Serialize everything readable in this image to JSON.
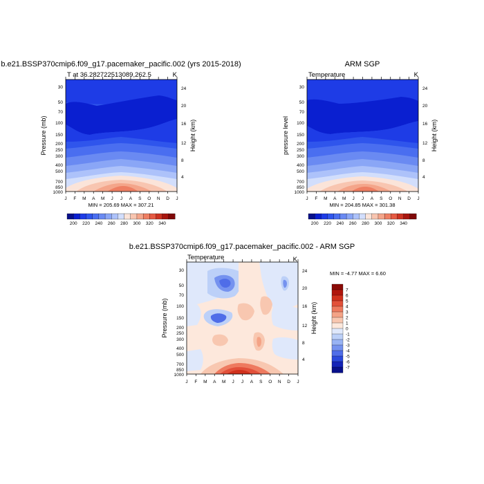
{
  "chart_data": [
    {
      "type": "heatmap",
      "title": "b.e21.BSSP370cmip6.f09_g17.pacemaker_pacific.002 (yrs 2015-2018)",
      "subtitle_left": "T at 36.282722513089,262.5",
      "subtitle_right": "K",
      "xlabel": "",
      "ylabel": "Pressure (mb)",
      "ylabel_right": "Height (km)",
      "x_ticks": [
        "J",
        "F",
        "M",
        "A",
        "M",
        "J",
        "J",
        "A",
        "S",
        "O",
        "N",
        "D",
        "J"
      ],
      "y_ticks": [
        30,
        50,
        70,
        100,
        150,
        200,
        250,
        300,
        400,
        500,
        700,
        850,
        1000
      ],
      "y_log_scale": true,
      "ylim": [
        20,
        1000
      ],
      "y_right_ticks": [
        4,
        8,
        12,
        16,
        20,
        24
      ],
      "minmax_text": "MIN = 205.69 MAX = 307.21",
      "colorbar": {
        "orientation": "horizontal",
        "labels": [
          "200",
          "220",
          "240",
          "260",
          "280",
          "300",
          "320",
          "340"
        ],
        "levels": [
          190,
          200,
          210,
          220,
          230,
          240,
          250,
          260,
          270,
          280,
          290,
          300,
          310,
          320,
          330,
          340,
          350
        ],
        "colors": [
          "#08108a",
          "#0a1fd0",
          "#1e3ce6",
          "#2f55ec",
          "#4a6ef0",
          "#6a8af2",
          "#8aa6f6",
          "#adc2fa",
          "#d2defc",
          "#fbe4d9",
          "#f8c5b0",
          "#f4a58a",
          "#ee7f63",
          "#e55a43",
          "#cc3322",
          "#a8160f",
          "#7f0808"
        ]
      }
    },
    {
      "type": "heatmap",
      "title": "ARM SGP",
      "subtitle_left": "Temperature",
      "subtitle_right": "K",
      "xlabel": "",
      "ylabel": "pressure level",
      "ylabel_right": "Height (km)",
      "x_ticks": [
        "J",
        "F",
        "M",
        "A",
        "M",
        "J",
        "J",
        "A",
        "S",
        "O",
        "N",
        "D",
        "J"
      ],
      "y_ticks": [
        30,
        50,
        70,
        100,
        150,
        200,
        250,
        300,
        400,
        500,
        700,
        850,
        1000
      ],
      "y_log_scale": true,
      "ylim": [
        20,
        1000
      ],
      "y_right_ticks": [
        4,
        8,
        12,
        16,
        20,
        24
      ],
      "minmax_text": "MIN = 204.85 MAX = 301.38",
      "colorbar": {
        "orientation": "horizontal",
        "labels": [
          "200",
          "220",
          "240",
          "260",
          "280",
          "300",
          "320",
          "340"
        ],
        "levels": [
          190,
          200,
          210,
          220,
          230,
          240,
          250,
          260,
          270,
          280,
          290,
          300,
          310,
          320,
          330,
          340,
          350
        ],
        "colors": [
          "#08108a",
          "#0a1fd0",
          "#1e3ce6",
          "#2f55ec",
          "#4a6ef0",
          "#6a8af2",
          "#8aa6f6",
          "#adc2fa",
          "#d2defc",
          "#fbe4d9",
          "#f8c5b0",
          "#f4a58a",
          "#ee7f63",
          "#e55a43",
          "#cc3322",
          "#a8160f",
          "#7f0808"
        ]
      }
    },
    {
      "type": "heatmap",
      "title": "b.e21.BSSP370cmip6.f09_g17.pacemaker_pacific.002 - ARM SGP",
      "subtitle_left": "Temperature",
      "subtitle_right": "K",
      "xlabel": "",
      "ylabel": "Pressure (mb)",
      "ylabel_right": "Height (km)",
      "x_ticks": [
        "J",
        "F",
        "M",
        "A",
        "M",
        "J",
        "J",
        "A",
        "S",
        "O",
        "N",
        "D",
        "J"
      ],
      "y_ticks": [
        30,
        50,
        70,
        100,
        150,
        200,
        250,
        300,
        400,
        500,
        700,
        850,
        1000
      ],
      "y_log_scale": true,
      "ylim": [
        20,
        1000
      ],
      "y_right_ticks": [
        4,
        8,
        12,
        16,
        20,
        24
      ],
      "minmax_text": "MIN =  -4.77 MAX =   6.60",
      "colorbar": {
        "orientation": "vertical",
        "labels": [
          "7",
          "6",
          "5",
          "4",
          "3",
          "2",
          "1",
          "0",
          "-1",
          "-2",
          "-3",
          "-4",
          "-5",
          "-6",
          "-7"
        ],
        "levels": [
          7.5,
          7,
          6,
          5,
          4,
          3,
          2,
          1,
          0,
          -1,
          -2,
          -3,
          -4,
          -5,
          -6,
          -7,
          -7.5
        ],
        "colors": [
          "#8a0a06",
          "#b0150c",
          "#d0301c",
          "#e2503a",
          "#ee7a5f",
          "#f4a386",
          "#f8c7b0",
          "#fde8dc",
          "#dfe8fb",
          "#bcd0f8",
          "#98b3f4",
          "#7592ef",
          "#4f6de8",
          "#2b49dc",
          "#1424b8",
          "#08108a"
        ]
      }
    }
  ]
}
